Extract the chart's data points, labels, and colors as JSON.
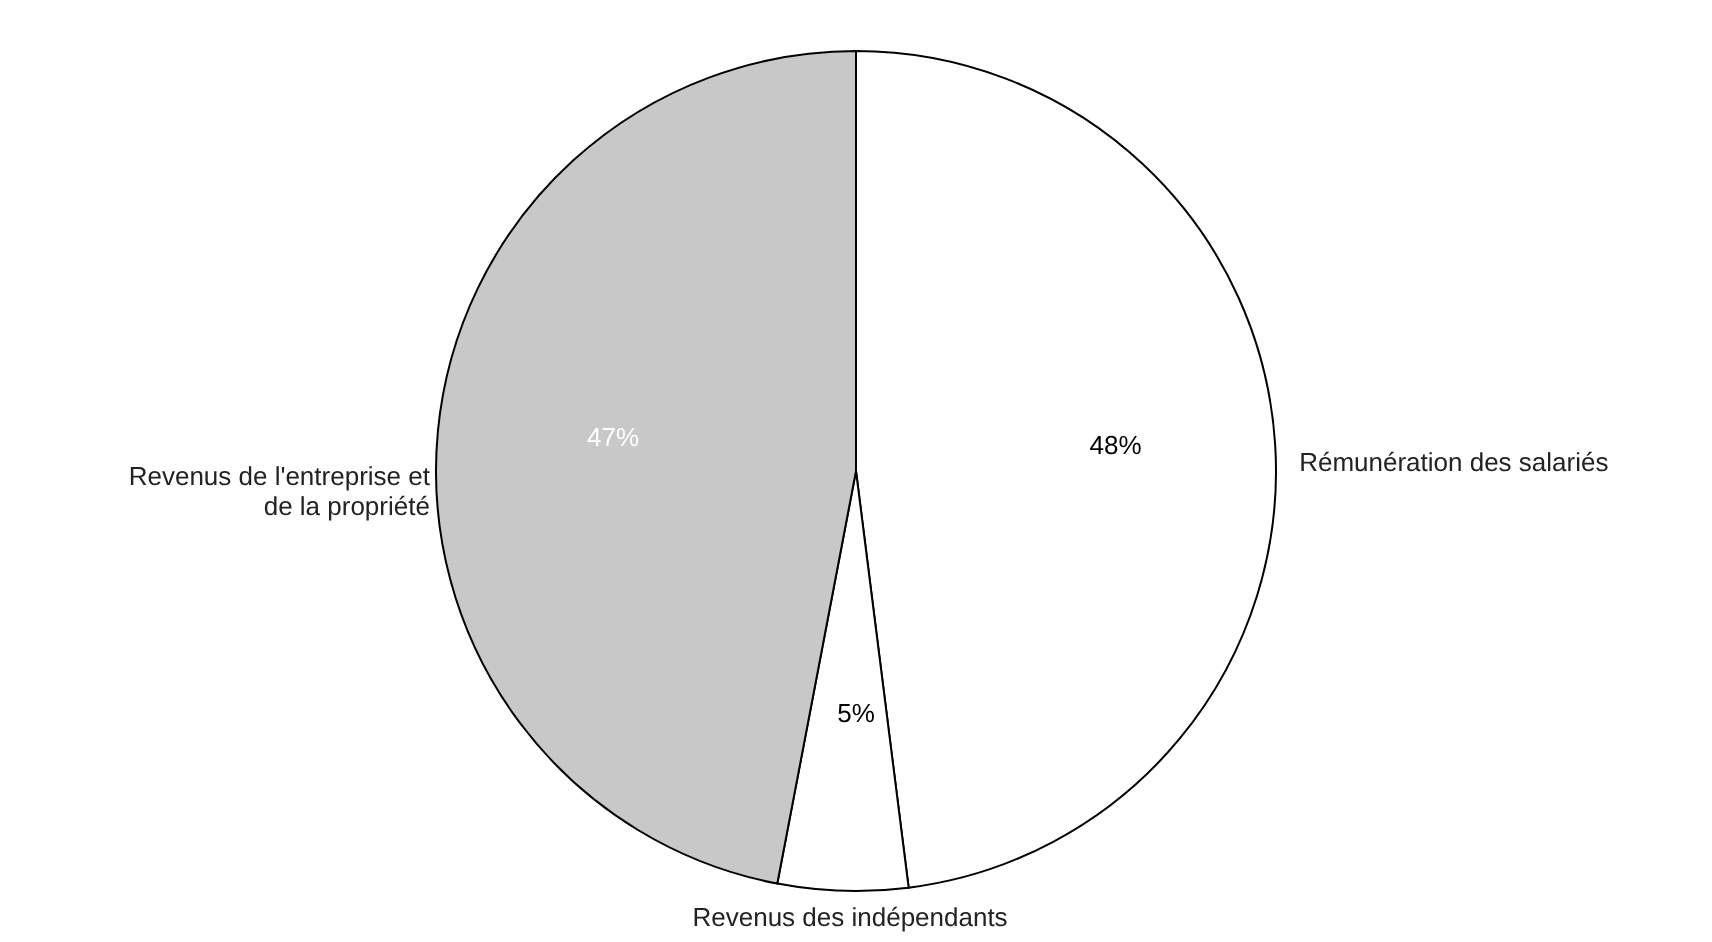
{
  "chart_data": {
    "type": "pie",
    "categories": [
      "Rémunération des salariés",
      "Revenus des indépendants",
      "Revenus de l'entreprise et\nde la propriété"
    ],
    "values": [
      48,
      5,
      47
    ],
    "colors": [
      "#ffffff",
      "#ffffff",
      "#c8c8c8"
    ],
    "value_labels": [
      "48%",
      "5%",
      "47%"
    ]
  }
}
